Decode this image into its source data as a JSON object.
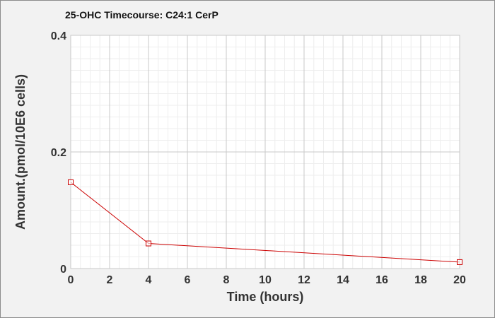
{
  "chart_data": {
    "type": "line",
    "title": "25-OHC Timecourse: C24:1 CerP",
    "xlabel": "Time (hours)",
    "ylabel": "Amount.(pmol/10E6 cells)",
    "xlim": [
      0,
      20
    ],
    "ylim": [
      0,
      0.4
    ],
    "x_ticks": [
      "0",
      "2",
      "4",
      "6",
      "8",
      "10",
      "12",
      "14",
      "16",
      "18",
      "20"
    ],
    "y_ticks": [
      "0",
      "0.2",
      "0.4"
    ],
    "grid": true,
    "legend": "none",
    "series": [
      {
        "color": "#cc0000",
        "marker": "open-square",
        "x": [
          0,
          4,
          20
        ],
        "y": [
          0.148,
          0.043,
          0.011
        ]
      }
    ]
  }
}
